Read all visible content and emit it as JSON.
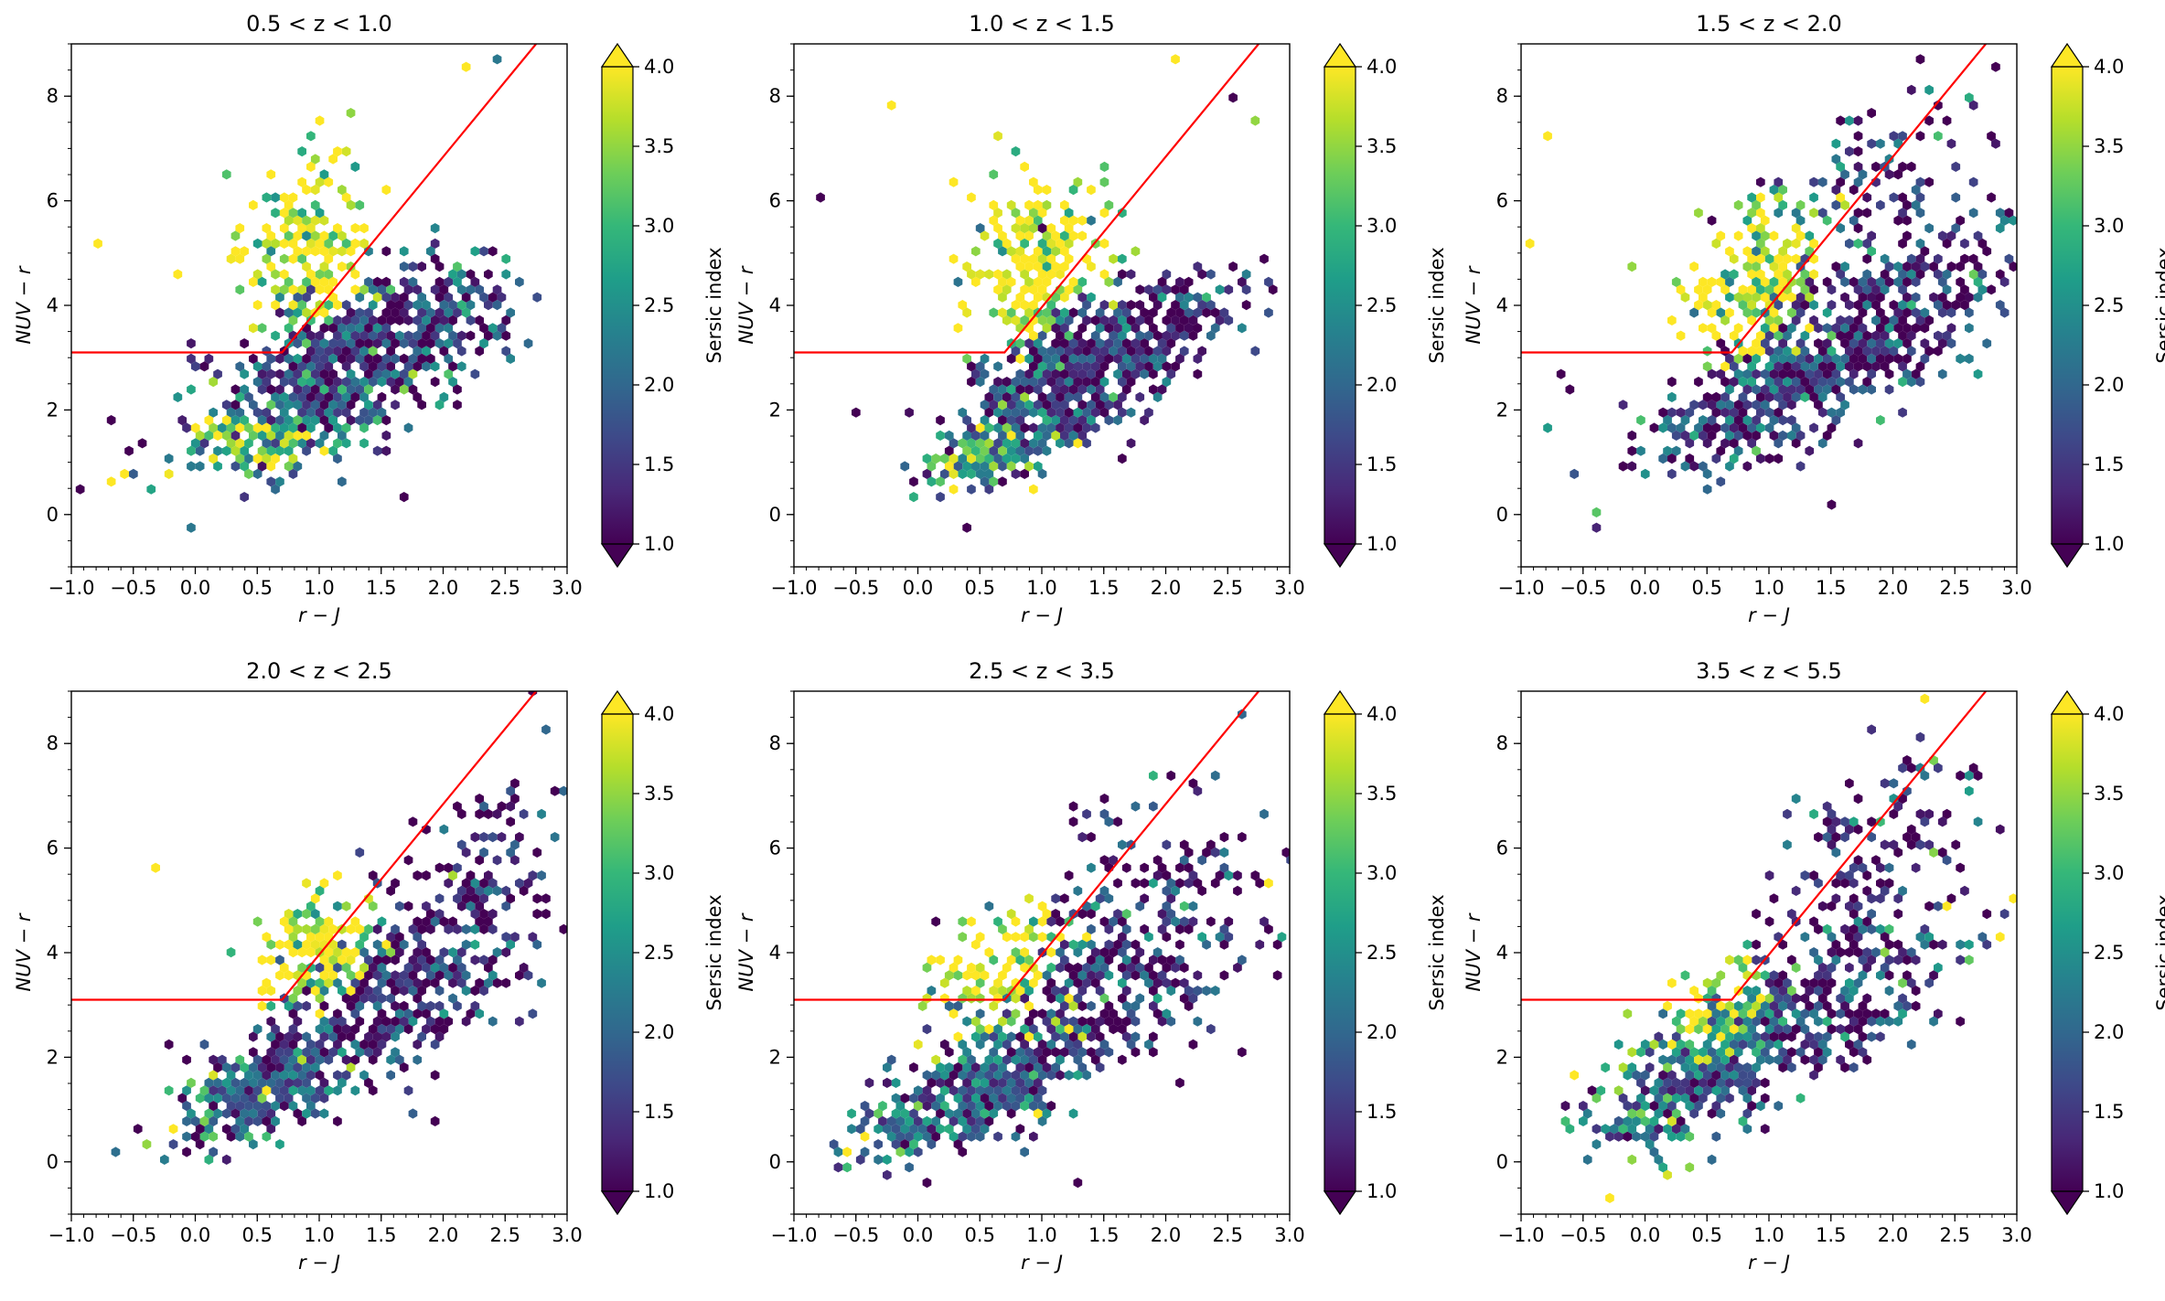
{
  "figure": {
    "colormap_colors": [
      "#440154",
      "#482878",
      "#3e4989",
      "#31688e",
      "#26828e",
      "#1f9e89",
      "#35b779",
      "#6ece58",
      "#b5de2b",
      "#fde725"
    ],
    "boundary_color": "#ff0000"
  },
  "chart_data": [
    {
      "type": "hexbin",
      "title": "0.5 < z < 1.0",
      "xlabel": "r − J",
      "ylabel": "NUV − r",
      "xlim": [
        -1.0,
        3.0
      ],
      "ylim": [
        -1.0,
        9.0
      ],
      "xticks": [
        "−1.0",
        "−0.5",
        "0.0",
        "0.5",
        "1.0",
        "1.5",
        "2.0",
        "2.5",
        "3.0"
      ],
      "yticks": [
        "0",
        "2",
        "4",
        "6",
        "8"
      ],
      "colorbar": {
        "label": "Sersic index",
        "range": [
          1.0,
          4.0
        ],
        "extend": "both",
        "ticks": [
          "1.0",
          "1.5",
          "2.0",
          "2.5",
          "3.0",
          "3.5",
          "4.0"
        ]
      },
      "boundary": [
        [
          -1.0,
          3.1
        ],
        [
          0.7,
          3.1
        ],
        [
          2.75,
          9.0
        ]
      ],
      "clouds": [
        {
          "center": [
            1.2,
            2.6
          ],
          "spread": [
            0.6,
            0.65
          ],
          "tilt": 0.55,
          "n": 420,
          "sersic": 1.7
        },
        {
          "center": [
            1.6,
            3.6
          ],
          "spread": [
            0.55,
            0.6
          ],
          "tilt": 0.5,
          "n": 280,
          "sersic": 1.4
        },
        {
          "center": [
            0.9,
            5.2
          ],
          "spread": [
            0.28,
            0.9
          ],
          "tilt": 0.25,
          "n": 190,
          "sersic": 3.9
        },
        {
          "center": [
            0.6,
            1.4
          ],
          "spread": [
            0.3,
            0.35
          ],
          "tilt": 0.3,
          "n": 110,
          "sersic": 3.5
        }
      ],
      "outliers": [
        [
          -0.95,
          0.5,
          1.0
        ],
        [
          -0.75,
          5.2,
          4.0
        ],
        [
          -0.7,
          0.6,
          4.0
        ],
        [
          -0.6,
          0.8,
          4.0
        ],
        [
          -0.15,
          4.6,
          4.0
        ],
        [
          2.45,
          8.7,
          2.2
        ],
        [
          2.2,
          8.6,
          4.0
        ],
        [
          1.7,
          0.35,
          1.0
        ]
      ]
    },
    {
      "type": "hexbin",
      "title": "1.0 < z < 1.5",
      "xlabel": "r − J",
      "ylabel": "NUV − r",
      "xlim": [
        -1.0,
        3.0
      ],
      "ylim": [
        -1.0,
        9.0
      ],
      "xticks": [
        "−1.0",
        "−0.5",
        "0.0",
        "0.5",
        "1.0",
        "1.5",
        "2.0",
        "2.5",
        "3.0"
      ],
      "yticks": [
        "0",
        "2",
        "4",
        "6",
        "8"
      ],
      "colorbar": {
        "label": "Sersic index",
        "range": [
          1.0,
          4.0
        ],
        "extend": "both",
        "ticks": [
          "1.0",
          "1.5",
          "2.0",
          "2.5",
          "3.0",
          "3.5",
          "4.0"
        ]
      },
      "boundary": [
        [
          -1.0,
          3.1
        ],
        [
          0.7,
          3.1
        ],
        [
          2.75,
          9.0
        ]
      ],
      "clouds": [
        {
          "center": [
            1.1,
            2.2
          ],
          "spread": [
            0.45,
            0.6
          ],
          "tilt": 0.6,
          "n": 420,
          "sersic": 1.6
        },
        {
          "center": [
            1.7,
            3.3
          ],
          "spread": [
            0.45,
            0.55
          ],
          "tilt": 0.55,
          "n": 280,
          "sersic": 1.3
        },
        {
          "center": [
            1.0,
            4.8
          ],
          "spread": [
            0.3,
            0.9
          ],
          "tilt": 0.3,
          "n": 230,
          "sersic": 3.9
        },
        {
          "center": [
            0.6,
            1.2
          ],
          "spread": [
            0.25,
            0.3
          ],
          "tilt": 0.2,
          "n": 90,
          "sersic": 3.3
        }
      ],
      "outliers": [
        [
          -0.8,
          6.1,
          1.0
        ],
        [
          -0.2,
          7.8,
          4.0
        ],
        [
          -0.5,
          1.9,
          1.0
        ],
        [
          2.75,
          7.6,
          3.5
        ],
        [
          2.55,
          8.0,
          1.0
        ],
        [
          2.1,
          8.7,
          4.0
        ]
      ]
    },
    {
      "type": "hexbin",
      "title": "1.5 < z < 2.0",
      "xlabel": "r − J",
      "ylabel": "NUV − r",
      "xlim": [
        -1.0,
        3.0
      ],
      "ylim": [
        -1.0,
        9.0
      ],
      "xticks": [
        "−1.0",
        "−0.5",
        "0.0",
        "0.5",
        "1.0",
        "1.5",
        "2.0",
        "2.5",
        "3.0"
      ],
      "yticks": [
        "0",
        "2",
        "4",
        "6",
        "8"
      ],
      "colorbar": {
        "label": "Sersic index",
        "range": [
          1.0,
          4.0
        ],
        "extend": "both",
        "ticks": [
          "1.0",
          "1.5",
          "2.0",
          "2.5",
          "3.0",
          "3.5",
          "4.0"
        ]
      },
      "boundary": [
        [
          -1.0,
          3.1
        ],
        [
          0.7,
          3.1
        ],
        [
          2.75,
          9.0
        ]
      ],
      "clouds": [
        {
          "center": [
            1.0,
            2.2
          ],
          "spread": [
            0.55,
            0.6
          ],
          "tilt": 0.55,
          "n": 380,
          "sersic": 1.6
        },
        {
          "center": [
            1.9,
            3.8
          ],
          "spread": [
            0.6,
            0.8
          ],
          "tilt": 0.55,
          "n": 320,
          "sersic": 1.3
        },
        {
          "center": [
            0.9,
            4.4
          ],
          "spread": [
            0.3,
            0.8
          ],
          "tilt": 0.35,
          "n": 190,
          "sersic": 3.9
        },
        {
          "center": [
            1.9,
            6.3
          ],
          "spread": [
            0.45,
            0.8
          ],
          "tilt": 0.4,
          "n": 90,
          "sersic": 1.4
        }
      ],
      "outliers": [
        [
          -0.95,
          5.2,
          4.0
        ],
        [
          -0.75,
          7.2,
          4.0
        ],
        [
          -0.65,
          2.7,
          1.0
        ],
        [
          -0.6,
          2.4,
          1.0
        ],
        [
          2.85,
          8.5,
          1.0
        ],
        [
          1.5,
          0.2,
          1.0
        ],
        [
          2.95,
          5.6,
          2.5
        ]
      ]
    },
    {
      "type": "hexbin",
      "title": "2.0 < z < 2.5",
      "xlabel": "r − J",
      "ylabel": "NUV − r",
      "xlim": [
        -1.0,
        3.0
      ],
      "ylim": [
        -1.0,
        9.0
      ],
      "xticks": [
        "−1.0",
        "−0.5",
        "0.0",
        "0.5",
        "1.0",
        "1.5",
        "2.0",
        "2.5",
        "3.0"
      ],
      "yticks": [
        "0",
        "2",
        "4",
        "6",
        "8"
      ],
      "colorbar": {
        "label": "Sersic index",
        "range": [
          1.0,
          4.0
        ],
        "extend": "both",
        "ticks": [
          "1.0",
          "1.5",
          "2.0",
          "2.5",
          "3.0",
          "3.5",
          "4.0"
        ]
      },
      "boundary": [
        [
          -1.0,
          3.1
        ],
        [
          0.7,
          3.1
        ],
        [
          2.75,
          9.0
        ]
      ],
      "clouds": [
        {
          "center": [
            0.6,
            1.4
          ],
          "spread": [
            0.4,
            0.45
          ],
          "tilt": 0.45,
          "n": 330,
          "sersic": 2.0
        },
        {
          "center": [
            1.7,
            3.2
          ],
          "spread": [
            0.55,
            0.7
          ],
          "tilt": 0.6,
          "n": 330,
          "sersic": 1.3
        },
        {
          "center": [
            0.95,
            3.9
          ],
          "spread": [
            0.25,
            0.6
          ],
          "tilt": 0.35,
          "n": 140,
          "sersic": 3.9
        },
        {
          "center": [
            2.2,
            5.5
          ],
          "spread": [
            0.4,
            0.8
          ],
          "tilt": 0.4,
          "n": 110,
          "sersic": 1.3
        }
      ],
      "outliers": [
        [
          -0.3,
          5.6,
          4.0
        ],
        [
          2.75,
          9.0,
          1.0
        ],
        [
          2.85,
          8.2,
          2.0
        ],
        [
          2.95,
          7.1,
          2.0
        ],
        [
          -0.2,
          2.3,
          1.0
        ],
        [
          -0.1,
          0.2,
          1.0
        ]
      ]
    },
    {
      "type": "hexbin",
      "title": "2.5 < z < 3.5",
      "xlabel": "r − J",
      "ylabel": "NUV − r",
      "xlim": [
        -1.0,
        3.0
      ],
      "ylim": [
        -1.0,
        9.0
      ],
      "xticks": [
        "−1.0",
        "−0.5",
        "0.0",
        "0.5",
        "1.0",
        "1.5",
        "2.0",
        "2.5",
        "3.0"
      ],
      "yticks": [
        "0",
        "2",
        "4",
        "6",
        "8"
      ],
      "colorbar": {
        "label": "Sersic index",
        "range": [
          1.0,
          4.0
        ],
        "extend": "both",
        "ticks": [
          "1.0",
          "1.5",
          "2.0",
          "2.5",
          "3.0",
          "3.5",
          "4.0"
        ]
      },
      "boundary": [
        [
          -1.0,
          3.1
        ],
        [
          0.7,
          3.1
        ],
        [
          2.75,
          9.0
        ]
      ],
      "clouds": [
        {
          "center": [
            0.4,
            1.2
          ],
          "spread": [
            0.45,
            0.5
          ],
          "tilt": 0.5,
          "n": 330,
          "sersic": 2.0
        },
        {
          "center": [
            1.4,
            2.9
          ],
          "spread": [
            0.6,
            0.75
          ],
          "tilt": 0.6,
          "n": 330,
          "sersic": 1.4
        },
        {
          "center": [
            0.7,
            3.4
          ],
          "spread": [
            0.3,
            0.7
          ],
          "tilt": 0.45,
          "n": 140,
          "sersic": 3.9
        },
        {
          "center": [
            1.8,
            5.0
          ],
          "spread": [
            0.5,
            0.9
          ],
          "tilt": 0.4,
          "n": 150,
          "sersic": 1.3
        }
      ],
      "outliers": [
        [
          -0.6,
          0.2,
          4.0
        ],
        [
          -0.4,
          0.5,
          4.0
        ],
        [
          2.95,
          5.9,
          1.0
        ],
        [
          2.85,
          5.3,
          4.0
        ],
        [
          2.65,
          2.1,
          1.0
        ],
        [
          2.6,
          8.6,
          2.0
        ]
      ]
    },
    {
      "type": "hexbin",
      "title": "3.5 < z < 5.5",
      "xlabel": "r − J",
      "ylabel": "NUV − r",
      "xlim": [
        -1.0,
        3.0
      ],
      "ylim": [
        -1.0,
        9.0
      ],
      "xticks": [
        "−1.0",
        "−0.5",
        "0.0",
        "0.5",
        "1.0",
        "1.5",
        "2.0",
        "2.5",
        "3.0"
      ],
      "yticks": [
        "0",
        "2",
        "4",
        "6",
        "8"
      ],
      "colorbar": {
        "label": "Sersic index",
        "range": [
          1.0,
          4.0
        ],
        "extend": "both",
        "ticks": [
          "1.0",
          "1.5",
          "2.0",
          "2.5",
          "3.0",
          "3.5",
          "4.0"
        ]
      },
      "boundary": [
        [
          -1.0,
          3.1
        ],
        [
          0.7,
          3.1
        ],
        [
          2.75,
          9.0
        ]
      ],
      "clouds": [
        {
          "center": [
            0.4,
            1.5
          ],
          "spread": [
            0.45,
            0.55
          ],
          "tilt": 0.5,
          "n": 300,
          "sersic": 2.1
        },
        {
          "center": [
            1.5,
            3.1
          ],
          "spread": [
            0.55,
            0.7
          ],
          "tilt": 0.55,
          "n": 290,
          "sersic": 1.5
        },
        {
          "center": [
            0.6,
            2.8
          ],
          "spread": [
            0.25,
            0.5
          ],
          "tilt": 0.4,
          "n": 90,
          "sersic": 3.8
        },
        {
          "center": [
            1.8,
            5.8
          ],
          "spread": [
            0.45,
            1.0
          ],
          "tilt": 0.45,
          "n": 150,
          "sersic": 1.3
        }
      ],
      "outliers": [
        [
          -0.3,
          -0.7,
          4.0
        ],
        [
          -0.6,
          1.6,
          4.0
        ],
        [
          2.25,
          8.9,
          4.0
        ],
        [
          2.95,
          5.0,
          4.0
        ],
        [
          2.9,
          4.3,
          4.0
        ],
        [
          2.75,
          4.7,
          1.0
        ]
      ]
    }
  ]
}
